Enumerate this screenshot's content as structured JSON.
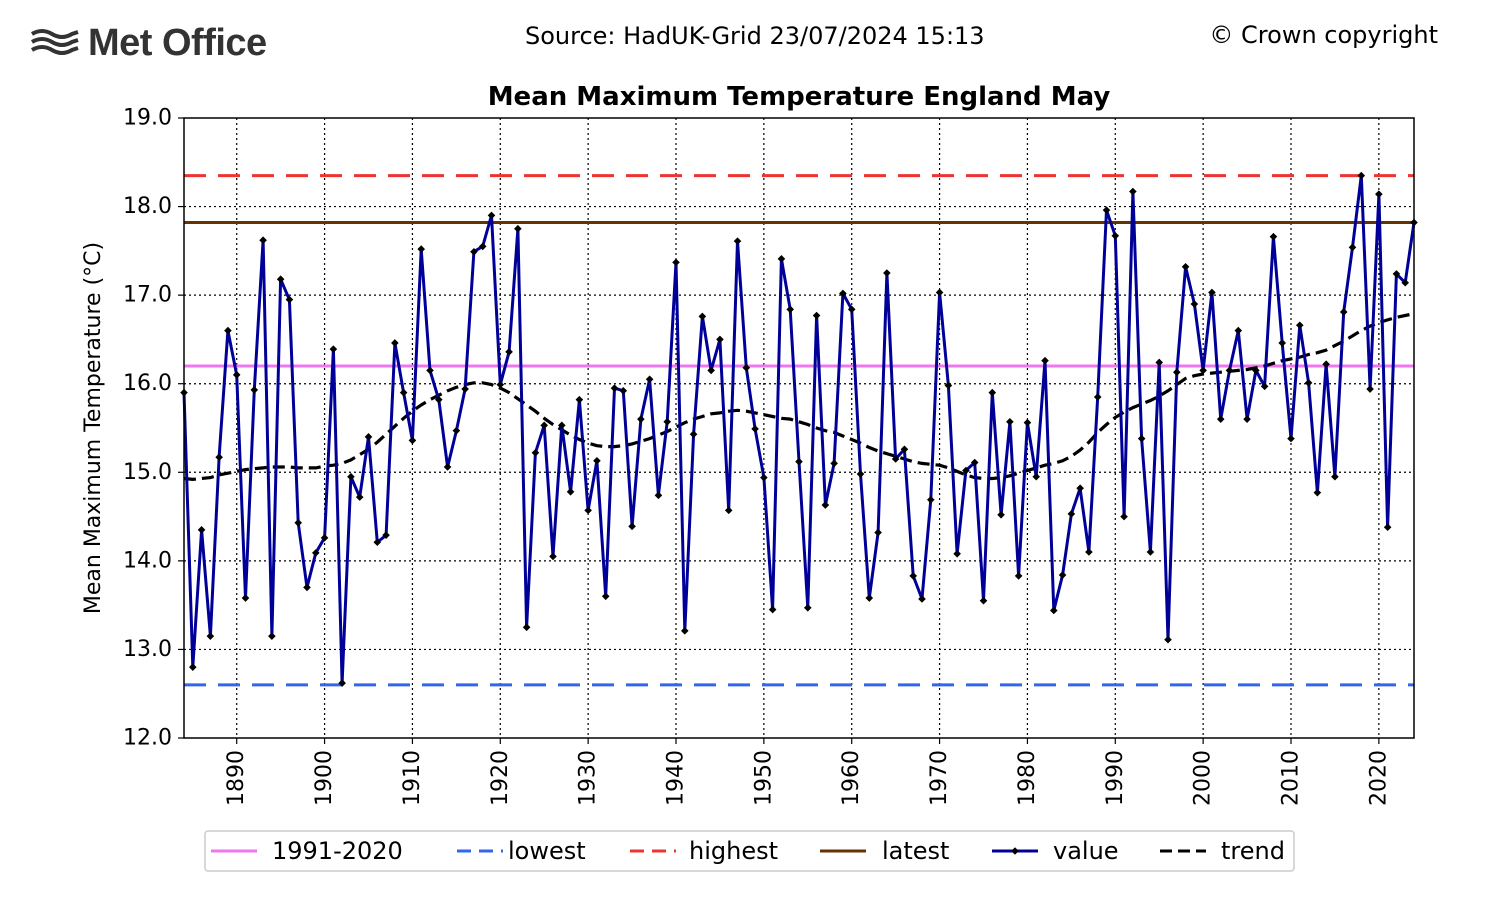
{
  "header": {
    "logo_text": "Met Office",
    "source": "Source: HadUK-Grid 23/07/2024 15:13",
    "copyright": "© Crown copyright"
  },
  "chart_data": {
    "type": "line",
    "title": "Mean Maximum Temperature England May",
    "xlabel": "",
    "ylabel": "Mean Maximum Temperature (°C)",
    "xlim": [
      1884,
      2024
    ],
    "ylim": [
      12.0,
      19.0
    ],
    "grid": true,
    "x_ticks": [
      1890,
      1900,
      1910,
      1920,
      1930,
      1940,
      1950,
      1960,
      1970,
      1980,
      1990,
      2000,
      2010,
      2020
    ],
    "y_ticks": [
      12.0,
      13.0,
      14.0,
      15.0,
      16.0,
      17.0,
      18.0,
      19.0
    ],
    "reference_lines": [
      {
        "name": "1991-2020",
        "value": 16.2,
        "color": "#ee77ee",
        "dash": "solid"
      },
      {
        "name": "lowest",
        "value": 12.6,
        "color": "#3366ee",
        "dash": "dashed"
      },
      {
        "name": "highest",
        "value": 18.35,
        "color": "#ee3333",
        "dash": "dashed"
      },
      {
        "name": "latest",
        "value": 17.82,
        "color": "#663300",
        "dash": "solid"
      }
    ],
    "series": [
      {
        "name": "value",
        "color": "#000099",
        "marker_color": "#000000",
        "x_start": 1884,
        "values": [
          15.9,
          12.8,
          14.35,
          13.15,
          15.17,
          16.6,
          16.1,
          13.58,
          15.93,
          17.62,
          13.15,
          17.18,
          16.95,
          14.43,
          13.7,
          14.09,
          14.26,
          16.39,
          12.62,
          14.95,
          14.72,
          15.4,
          14.21,
          14.29,
          16.46,
          15.9,
          15.36,
          17.52,
          16.15,
          15.82,
          15.06,
          15.47,
          15.94,
          17.49,
          17.55,
          17.9,
          15.99,
          16.36,
          17.75,
          13.25,
          15.22,
          15.53,
          14.05,
          15.53,
          14.78,
          15.82,
          14.57,
          15.13,
          13.6,
          15.95,
          15.92,
          14.39,
          15.6,
          16.05,
          14.74,
          15.57,
          17.37,
          13.21,
          15.43,
          16.76,
          16.15,
          16.5,
          14.57,
          17.61,
          16.18,
          15.49,
          14.94,
          13.45,
          17.41,
          16.84,
          15.12,
          13.47,
          16.77,
          14.63,
          15.1,
          17.02,
          16.84,
          14.98,
          13.58,
          14.32,
          17.25,
          15.15,
          15.26,
          13.83,
          13.57,
          14.69,
          17.03,
          15.98,
          14.08,
          15.02,
          15.11,
          13.55,
          15.9,
          14.52,
          15.57,
          13.83,
          15.56,
          14.95,
          16.26,
          13.44,
          13.84,
          14.53,
          14.82,
          14.1,
          15.85,
          17.96,
          17.67,
          14.5,
          18.17,
          15.38,
          14.1,
          16.24,
          13.11,
          16.13,
          17.32,
          16.9,
          16.15,
          17.03,
          15.6,
          16.15,
          16.6,
          15.6,
          16.15,
          15.97,
          17.66,
          16.46,
          15.38,
          16.66,
          16.01,
          14.77,
          16.22,
          14.95,
          16.81,
          17.54,
          18.35,
          15.94,
          18.14,
          14.38,
          17.24,
          17.14,
          17.82
        ]
      },
      {
        "name": "trend",
        "color": "#000000",
        "dash": "dashed",
        "x_start": 1884,
        "values": [
          14.93,
          14.92,
          14.93,
          14.94,
          14.97,
          14.99,
          15.01,
          15.03,
          15.04,
          15.05,
          15.06,
          15.06,
          15.06,
          15.05,
          15.05,
          15.05,
          15.07,
          15.08,
          15.1,
          15.14,
          15.2,
          15.26,
          15.34,
          15.43,
          15.52,
          15.61,
          15.69,
          15.76,
          15.82,
          15.87,
          15.92,
          15.96,
          15.99,
          16.01,
          16.01,
          15.99,
          15.95,
          15.9,
          15.83,
          15.76,
          15.69,
          15.61,
          15.54,
          15.48,
          15.42,
          15.37,
          15.33,
          15.3,
          15.29,
          15.29,
          15.3,
          15.32,
          15.35,
          15.38,
          15.42,
          15.46,
          15.51,
          15.56,
          15.6,
          15.63,
          15.66,
          15.67,
          15.69,
          15.7,
          15.69,
          15.67,
          15.65,
          15.63,
          15.61,
          15.6,
          15.57,
          15.54,
          15.5,
          15.47,
          15.45,
          15.41,
          15.37,
          15.33,
          15.28,
          15.24,
          15.21,
          15.18,
          15.15,
          15.12,
          15.1,
          15.09,
          15.08,
          15.05,
          15.01,
          14.97,
          14.94,
          14.93,
          14.93,
          14.94,
          14.96,
          14.99,
          15.02,
          15.05,
          15.08,
          15.1,
          15.13,
          15.18,
          15.25,
          15.34,
          15.45,
          15.54,
          15.62,
          15.68,
          15.73,
          15.77,
          15.81,
          15.86,
          15.92,
          15.99,
          16.06,
          16.09,
          16.11,
          16.12,
          16.13,
          16.14,
          16.15,
          16.16,
          16.18,
          16.2,
          16.23,
          16.26,
          16.28,
          16.3,
          16.33,
          16.35,
          16.38,
          16.43,
          16.48,
          16.54,
          16.6,
          16.65,
          16.69,
          16.72,
          16.75,
          16.77,
          16.79
        ]
      }
    ],
    "legend": {
      "placement": "bottom-center",
      "entries": [
        "1991-2020",
        "lowest",
        "highest",
        "latest",
        "value",
        "trend"
      ]
    }
  }
}
